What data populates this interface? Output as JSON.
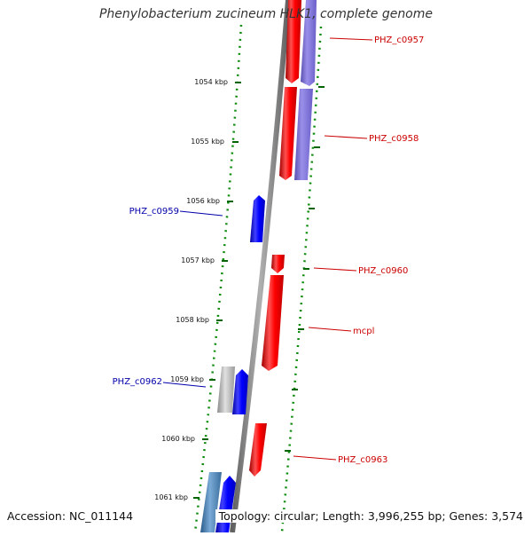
{
  "title": "Phenylobacterium zucineum HLK1, complete genome",
  "footer": {
    "accession": "Accession: NC_011144",
    "summary": "Topology: circular; Length: 3,996,255 bp; Genes: 3,574"
  },
  "ticks": [
    "1054 kbp",
    "1055 kbp",
    "1056 kbp",
    "1057 kbp",
    "1058 kbp",
    "1059 kbp",
    "1060 kbp",
    "1061 kbp"
  ],
  "gene_labels": {
    "c0957": "PHZ_c0957",
    "c0958": "PHZ_c0958",
    "c0959": "PHZ_c0959",
    "c0960": "PHZ_c0960",
    "mcpl": "mcpl",
    "c0962": "PHZ_c0962",
    "c0963": "PHZ_c0963"
  },
  "colors": {
    "forward_gene": "#ff0000",
    "reverse_gene": "#0000ff",
    "rna_gene": "#7b68d8",
    "pseudo_gene": "#b0b0b0",
    "steel_gene": "#4682b4",
    "backbone": "#808080",
    "tick_marks": "#006400",
    "label_forward": "#cc0000",
    "label_reverse": "#0000aa"
  }
}
